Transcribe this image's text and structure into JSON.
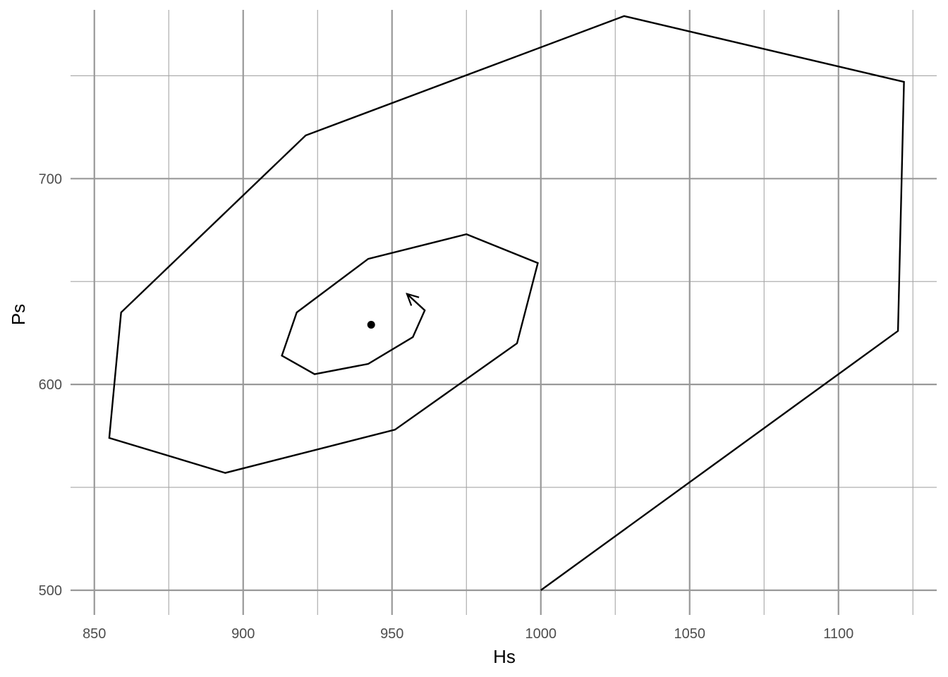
{
  "chart_data": {
    "type": "line",
    "title": "",
    "xlabel": "Hs",
    "ylabel": "Ps",
    "xlim": [
      842,
      1133
    ],
    "ylim": [
      488,
      782
    ],
    "x_major_ticks": [
      850,
      900,
      950,
      1000,
      1050,
      1100
    ],
    "x_minor_ticks": [
      875,
      925,
      975,
      1025,
      1075,
      1125
    ],
    "y_major_ticks": [
      500,
      600,
      700
    ],
    "y_minor_ticks": [
      550,
      650,
      750
    ],
    "grid": true,
    "legend": "none",
    "colors": {
      "line": "#000000",
      "grid_major": "#999999",
      "grid_minor": "#a6a6a6",
      "tick_text": "#4d4d4d"
    },
    "series": [
      {
        "points": [
          [
            1000,
            500
          ],
          [
            1120,
            626
          ],
          [
            1122,
            747
          ],
          [
            1028,
            779
          ],
          [
            921,
            721
          ],
          [
            859,
            635
          ],
          [
            855,
            574
          ],
          [
            894,
            557
          ],
          [
            951,
            578
          ],
          [
            992,
            620
          ],
          [
            999,
            659
          ],
          [
            975,
            673
          ],
          [
            942,
            661
          ],
          [
            918,
            635
          ],
          [
            913,
            614
          ],
          [
            924,
            605
          ],
          [
            942,
            610
          ],
          [
            957,
            623
          ],
          [
            961,
            636
          ],
          [
            955,
            644
          ]
        ],
        "end_arrow": true
      }
    ],
    "markers": [
      {
        "x": 943,
        "y": 629
      }
    ]
  }
}
